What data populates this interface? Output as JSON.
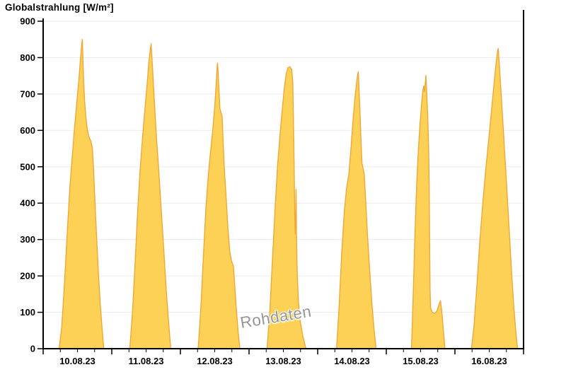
{
  "title": "Globalstrahlung [W/m²]",
  "watermark": "Rohdaten",
  "colors": {
    "area_fill": "#FCD155",
    "area_stroke": "#F1A736",
    "grid": "#ECECEC",
    "axis": "#000000",
    "tick_label": "#000000",
    "watermark": "#969696",
    "background": "#FFFFFF"
  },
  "chart_data": {
    "type": "area",
    "title": "Globalstrahlung [W/m²]",
    "ylabel": "W/m²",
    "xlabel": "",
    "ylim": [
      0,
      900
    ],
    "y_ticks": [
      0,
      100,
      200,
      300,
      400,
      500,
      600,
      700,
      800,
      900
    ],
    "y_tick_labels": [
      "0",
      "100",
      "200",
      "300",
      "400",
      "500",
      "600",
      "700",
      "800",
      "900"
    ],
    "grid": "horizontal",
    "legend": "none",
    "x_categories": [
      "10.08.23",
      "11.08.23",
      "12.08.23",
      "13.08.23",
      "14.08.23",
      "15.08.23",
      "16.08.23"
    ],
    "x_minor_tick_hours": [
      6,
      12,
      18
    ],
    "days": [
      {
        "date": "10.08.23",
        "peak_wm2": 850,
        "points_hour_value": [
          [
            5.6,
            0
          ],
          [
            6.5,
            60
          ],
          [
            7.5,
            185
          ],
          [
            8.5,
            330
          ],
          [
            9.4,
            450
          ],
          [
            10.2,
            530
          ],
          [
            11,
            610
          ],
          [
            11.8,
            680
          ],
          [
            12.5,
            740
          ],
          [
            13.1,
            800
          ],
          [
            13.5,
            838
          ],
          [
            13.7,
            850
          ],
          [
            13.85,
            810
          ],
          [
            14.1,
            745
          ],
          [
            14.5,
            680
          ],
          [
            14.9,
            640
          ],
          [
            15.4,
            605
          ],
          [
            16,
            582
          ],
          [
            16.7,
            570
          ],
          [
            17.2,
            552
          ],
          [
            17.6,
            500
          ],
          [
            18,
            420
          ],
          [
            18.6,
            320
          ],
          [
            19.3,
            210
          ],
          [
            20,
            120
          ],
          [
            20.7,
            45
          ],
          [
            21.2,
            0
          ]
        ]
      },
      {
        "date": "11.08.23",
        "peak_wm2": 838,
        "points_hour_value": [
          [
            6.3,
            0
          ],
          [
            7.2,
            95
          ],
          [
            8.1,
            225
          ],
          [
            9,
            370
          ],
          [
            9.9,
            490
          ],
          [
            10.8,
            585
          ],
          [
            11.6,
            660
          ],
          [
            12.4,
            730
          ],
          [
            13,
            790
          ],
          [
            13.5,
            825
          ],
          [
            13.75,
            838
          ],
          [
            14,
            805
          ],
          [
            14.5,
            735
          ],
          [
            15,
            665
          ],
          [
            15.6,
            585
          ],
          [
            16.2,
            515
          ],
          [
            16.9,
            430
          ],
          [
            17.6,
            345
          ],
          [
            18.3,
            255
          ],
          [
            19,
            165
          ],
          [
            19.8,
            80
          ],
          [
            20.6,
            0
          ]
        ]
      },
      {
        "date": "12.08.23",
        "peak_wm2": 785,
        "points_hour_value": [
          [
            6.2,
            0
          ],
          [
            7.1,
            105
          ],
          [
            8,
            245
          ],
          [
            8.9,
            385
          ],
          [
            9.8,
            480
          ],
          [
            10.6,
            545
          ],
          [
            11.3,
            600
          ],
          [
            12,
            665
          ],
          [
            12.5,
            725
          ],
          [
            12.85,
            775
          ],
          [
            13,
            785
          ],
          [
            13.2,
            755
          ],
          [
            13.5,
            705
          ],
          [
            13.8,
            660
          ],
          [
            14.2,
            648
          ],
          [
            14.6,
            638
          ],
          [
            14.8,
            595
          ],
          [
            15.3,
            505
          ],
          [
            15.9,
            425
          ],
          [
            16.6,
            330
          ],
          [
            17.3,
            265
          ],
          [
            17.9,
            240
          ],
          [
            18.5,
            228
          ],
          [
            18.9,
            185
          ],
          [
            19.5,
            115
          ],
          [
            20.2,
            45
          ],
          [
            20.8,
            0
          ]
        ]
      },
      {
        "date": "13.08.23",
        "peak_wm2": 775,
        "points_hour_value": [
          [
            6.3,
            0
          ],
          [
            7.3,
            105
          ],
          [
            8.2,
            245
          ],
          [
            9.1,
            385
          ],
          [
            10,
            505
          ],
          [
            10.9,
            595
          ],
          [
            11.7,
            665
          ],
          [
            12.4,
            720
          ],
          [
            13,
            755
          ],
          [
            13.6,
            772
          ],
          [
            14.2,
            775
          ],
          [
            14.9,
            768
          ],
          [
            15.3,
            735
          ],
          [
            15.5,
            645
          ],
          [
            15.7,
            530
          ],
          [
            15.9,
            415
          ],
          [
            16.1,
            315
          ],
          [
            16.3,
            355
          ],
          [
            16.45,
            438
          ],
          [
            16.6,
            310
          ],
          [
            16.85,
            205
          ],
          [
            17.3,
            125
          ],
          [
            17.9,
            75
          ],
          [
            18.8,
            35
          ],
          [
            19.9,
            0
          ]
        ]
      },
      {
        "date": "14.08.23",
        "peak_wm2": 761,
        "points_hour_value": [
          [
            6.6,
            0
          ],
          [
            7.5,
            115
          ],
          [
            8.4,
            260
          ],
          [
            9.3,
            375
          ],
          [
            10.1,
            440
          ],
          [
            10.9,
            480
          ],
          [
            11.6,
            545
          ],
          [
            12.3,
            620
          ],
          [
            13,
            685
          ],
          [
            13.6,
            730
          ],
          [
            14,
            755
          ],
          [
            14.2,
            761
          ],
          [
            14.45,
            715
          ],
          [
            14.8,
            650
          ],
          [
            15.2,
            565
          ],
          [
            15.5,
            510
          ],
          [
            15.9,
            494
          ],
          [
            16.3,
            478
          ],
          [
            16.8,
            405
          ],
          [
            17.4,
            315
          ],
          [
            18.1,
            225
          ],
          [
            18.9,
            130
          ],
          [
            19.7,
            55
          ],
          [
            20.4,
            0
          ]
        ]
      },
      {
        "date": "15.08.23",
        "peak_wm2": 751,
        "points_hour_value": [
          [
            8.8,
            0
          ],
          [
            9.4,
            145
          ],
          [
            10,
            305
          ],
          [
            10.6,
            445
          ],
          [
            11.2,
            545
          ],
          [
            11.8,
            618
          ],
          [
            12.4,
            678
          ],
          [
            12.85,
            712
          ],
          [
            13.15,
            722
          ],
          [
            13.4,
            706
          ],
          [
            13.65,
            733
          ],
          [
            13.85,
            751
          ],
          [
            14.1,
            710
          ],
          [
            14.45,
            645
          ],
          [
            14.8,
            555
          ],
          [
            15,
            445
          ],
          [
            15.15,
            300
          ],
          [
            15.3,
            165
          ],
          [
            15.5,
            112
          ],
          [
            16.1,
            100
          ],
          [
            16.9,
            97
          ],
          [
            17.7,
            103
          ],
          [
            18.5,
            123
          ],
          [
            18.95,
            132
          ],
          [
            19.35,
            107
          ],
          [
            19.85,
            62
          ],
          [
            20.5,
            0
          ]
        ]
      },
      {
        "date": "16.08.23",
        "peak_wm2": 825,
        "points_hour_value": [
          [
            5.8,
            0
          ],
          [
            6.7,
            65
          ],
          [
            7.7,
            175
          ],
          [
            8.7,
            295
          ],
          [
            9.7,
            395
          ],
          [
            10.7,
            485
          ],
          [
            11.7,
            565
          ],
          [
            12.7,
            645
          ],
          [
            13.6,
            722
          ],
          [
            14.4,
            785
          ],
          [
            14.95,
            820
          ],
          [
            15.15,
            825
          ],
          [
            15.5,
            785
          ],
          [
            16.1,
            708
          ],
          [
            16.8,
            618
          ],
          [
            17.5,
            528
          ],
          [
            18.2,
            432
          ],
          [
            19,
            322
          ],
          [
            19.8,
            212
          ],
          [
            20.6,
            112
          ],
          [
            21.4,
            38
          ],
          [
            21.9,
            0
          ]
        ]
      }
    ],
    "watermark": "Rohdaten"
  }
}
